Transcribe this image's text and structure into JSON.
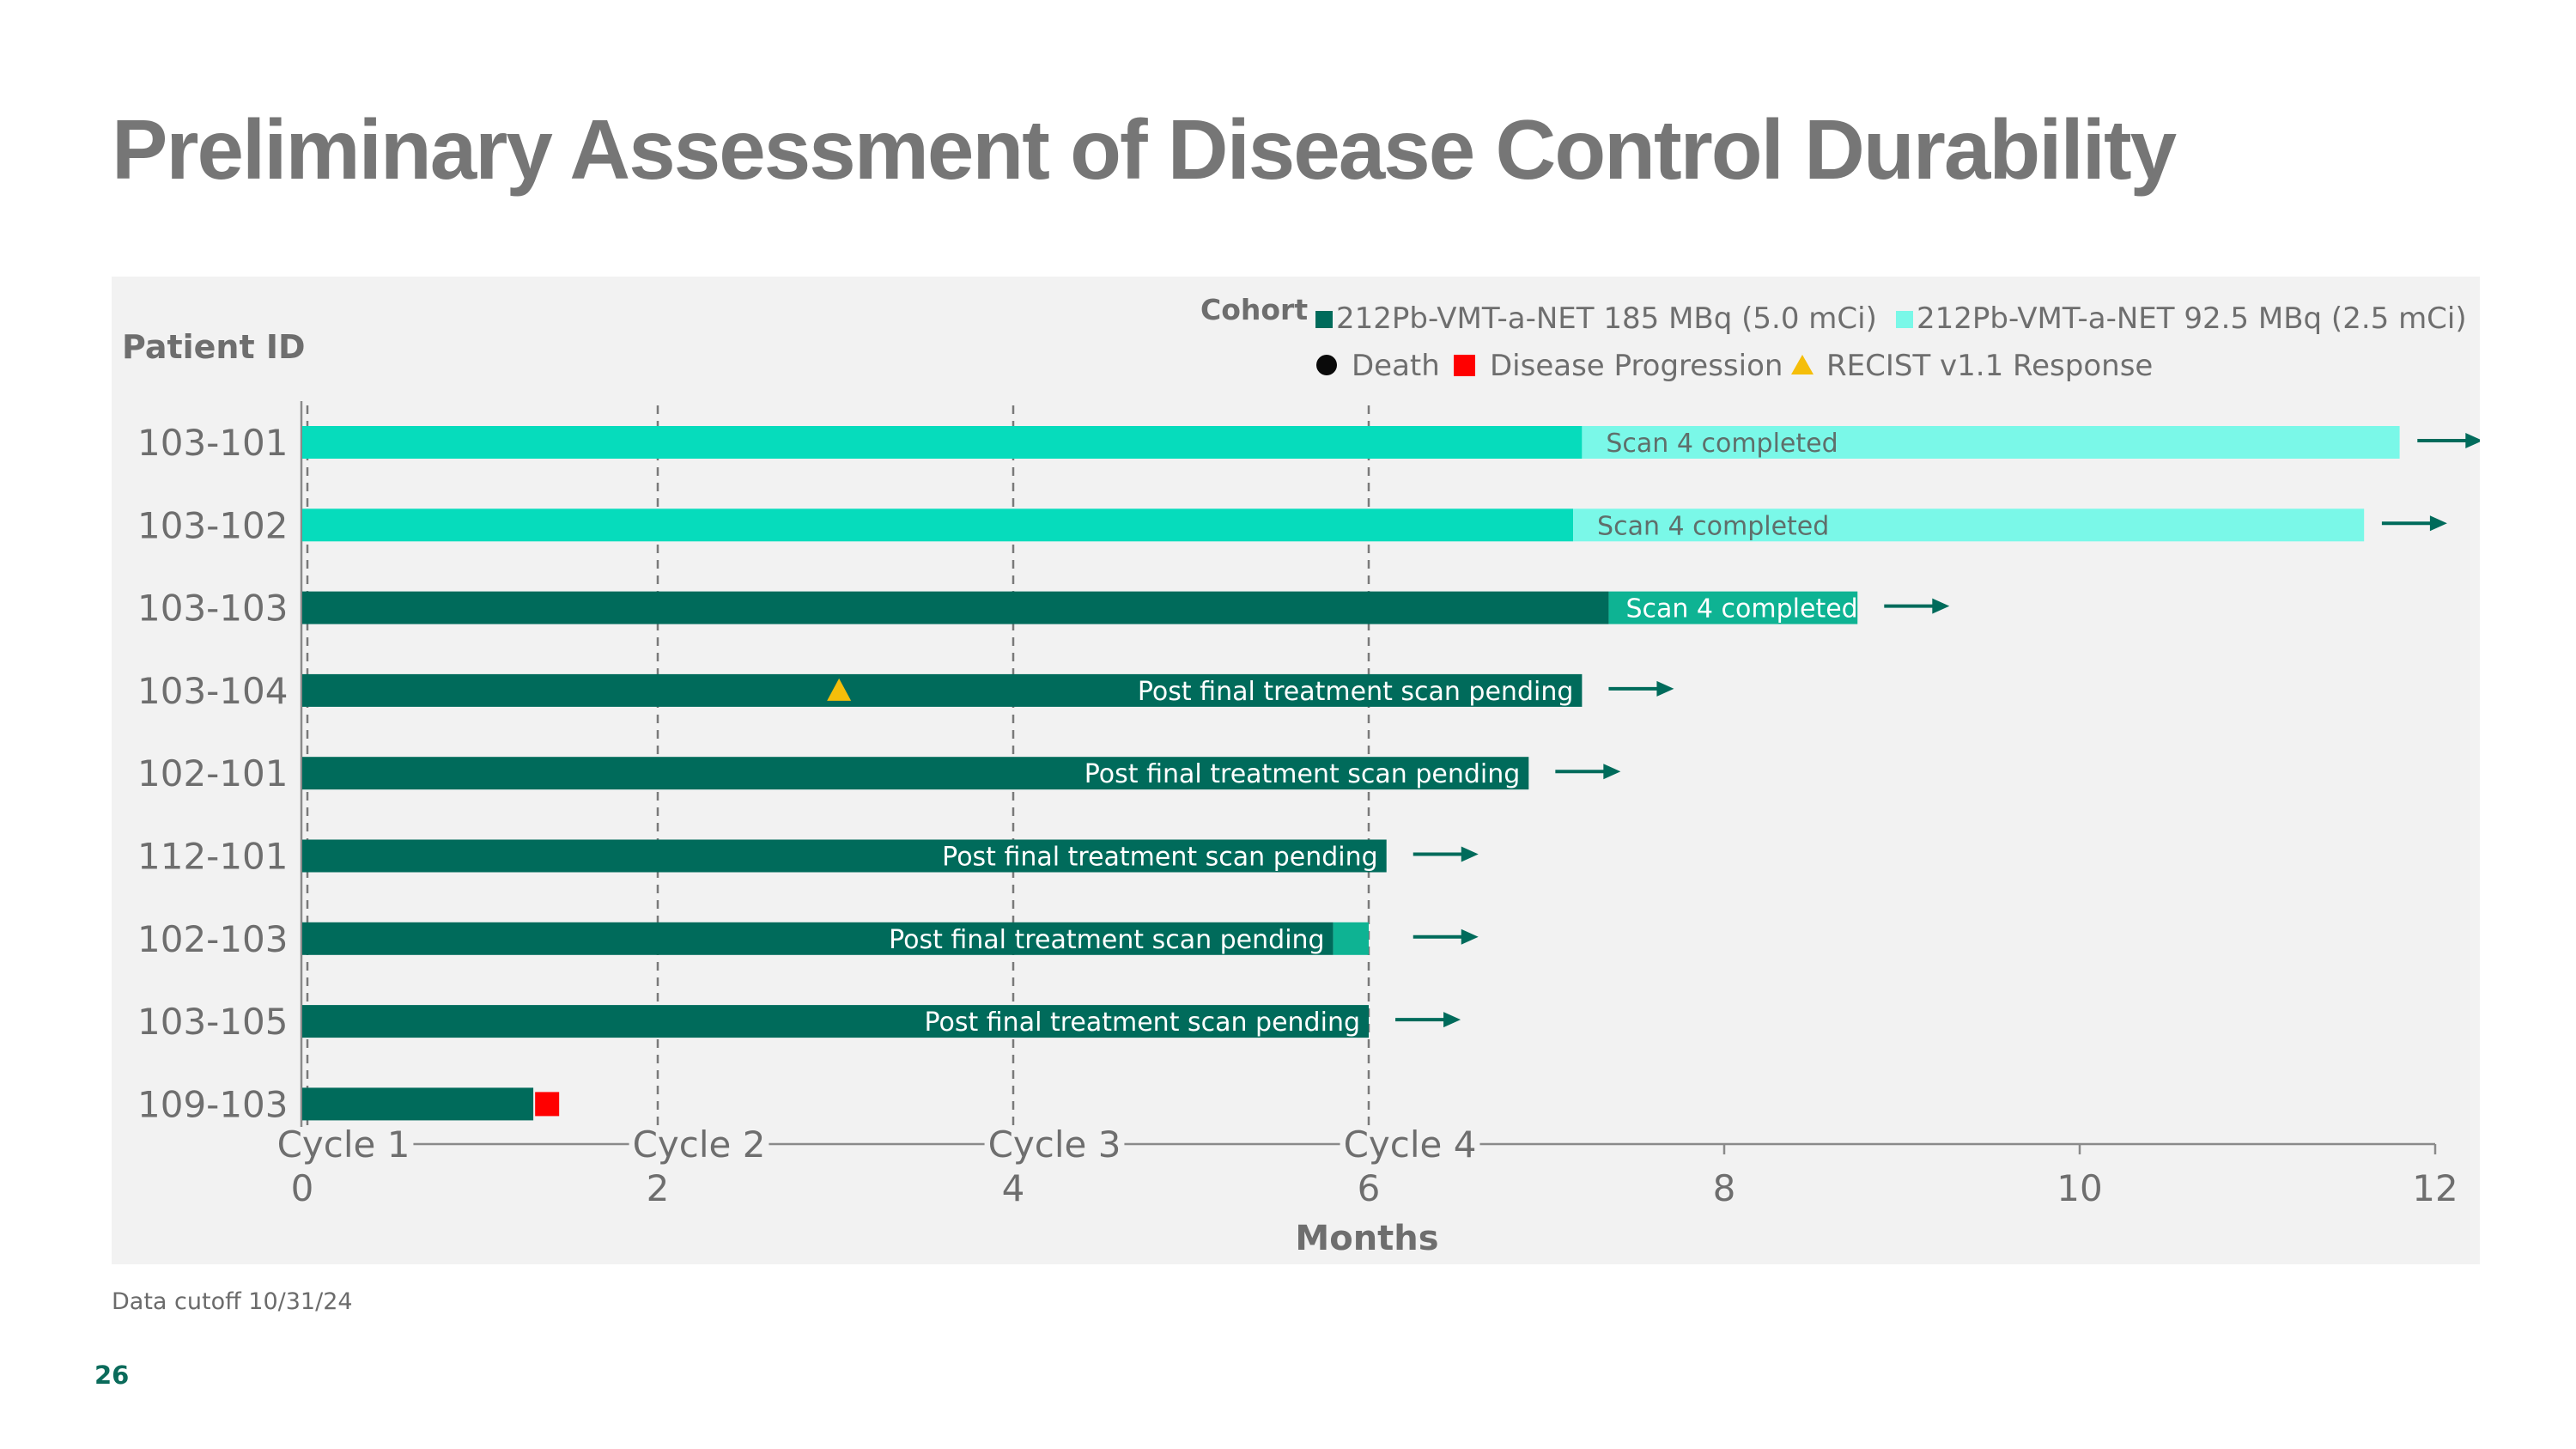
{
  "slide": {
    "title": "Preliminary Assessment of Disease Control Durability",
    "footnote": "Data cutoff 10/31/24",
    "page_number": "26"
  },
  "colors": {
    "dark_teal": "#006b5b",
    "bright_teal": "#06dcbc",
    "light_aqua": "#7af8e8",
    "mid_teal": "#0eb393",
    "progression_red": "#ff0000",
    "response_yellow": "#f5be0a",
    "death_black": "#0a0a0a",
    "label_gray": "#6e6e6e"
  },
  "chart_data": {
    "type": "swimmer",
    "ylabel": "Patient ID",
    "xlabel": "Months",
    "xlim": [
      0,
      12
    ],
    "x_ticks": [
      0,
      2,
      4,
      6,
      8,
      10,
      12
    ],
    "cycles": [
      {
        "label": "Cycle 1",
        "x": 0
      },
      {
        "label": "Cycle 2",
        "x": 2
      },
      {
        "label": "Cycle 3",
        "x": 4
      },
      {
        "label": "Cycle 4",
        "x": 6
      }
    ],
    "legend": {
      "cohort_title": "Cohort",
      "cohorts": [
        {
          "label": "212Pb-VMT-a-NET 185 MBq (5.0 mCi)",
          "color_key": "dark_teal"
        },
        {
          "label": "212Pb-VMT-a-NET 92.5 MBq (2.5 mCi)",
          "color_key": "light_aqua"
        }
      ],
      "markers": [
        {
          "label": "Death",
          "shape": "circle",
          "color_key": "death_black"
        },
        {
          "label": "Disease Progression",
          "shape": "square",
          "color_key": "progression_red"
        },
        {
          "label": "RECIST v1.1 Response",
          "shape": "triangle",
          "color_key": "response_yellow"
        }
      ]
    },
    "patients": [
      {
        "id": "103-101",
        "cohort": "92.5 MBq",
        "segments": [
          {
            "start": 0,
            "end": 7.2,
            "color_key": "bright_teal"
          },
          {
            "start": 7.2,
            "end": 11.8,
            "color_key": "light_aqua"
          }
        ],
        "annotation": "Scan 4 completed",
        "annotation_style": "gray-on-light",
        "ongoing": true,
        "arrow_x": 11.9,
        "markers": []
      },
      {
        "id": "103-102",
        "cohort": "92.5 MBq",
        "segments": [
          {
            "start": 0,
            "end": 7.15,
            "color_key": "bright_teal"
          },
          {
            "start": 7.15,
            "end": 11.6,
            "color_key": "light_aqua"
          }
        ],
        "annotation": "Scan 4 completed",
        "annotation_style": "gray-on-light",
        "ongoing": true,
        "arrow_x": 11.7,
        "markers": []
      },
      {
        "id": "103-103",
        "cohort": "185 MBq",
        "segments": [
          {
            "start": 0,
            "end": 7.35,
            "color_key": "dark_teal"
          },
          {
            "start": 7.35,
            "end": 8.75,
            "color_key": "mid_teal"
          }
        ],
        "annotation": "Scan 4 completed",
        "annotation_style": "white-on-segment",
        "ongoing": true,
        "arrow_x": 8.9,
        "markers": []
      },
      {
        "id": "103-104",
        "cohort": "185 MBq",
        "segments": [
          {
            "start": 0,
            "end": 7.2,
            "color_key": "dark_teal"
          }
        ],
        "annotation": "Post final treatment scan pending",
        "annotation_style": "white-inside",
        "ongoing": true,
        "arrow_x": 7.35,
        "markers": [
          {
            "type": "response",
            "x": 3.02
          }
        ]
      },
      {
        "id": "102-101",
        "cohort": "185 MBq",
        "segments": [
          {
            "start": 0,
            "end": 6.9,
            "color_key": "dark_teal"
          }
        ],
        "annotation": "Post final treatment scan pending",
        "annotation_style": "white-inside",
        "ongoing": true,
        "arrow_x": 7.05,
        "markers": []
      },
      {
        "id": "112-101",
        "cohort": "185 MBq",
        "segments": [
          {
            "start": 0,
            "end": 6.1,
            "color_key": "dark_teal"
          }
        ],
        "annotation": "Post final treatment scan pending",
        "annotation_style": "white-inside",
        "ongoing": true,
        "arrow_x": 6.25,
        "markers": []
      },
      {
        "id": "102-103",
        "cohort": "185 MBq",
        "segments": [
          {
            "start": 0,
            "end": 5.8,
            "color_key": "dark_teal"
          },
          {
            "start": 5.8,
            "end": 6.0,
            "color_key": "mid_teal"
          }
        ],
        "annotation": "Post final treatment scan pending",
        "annotation_style": "white-inside-first",
        "ongoing": true,
        "arrow_x": 6.25,
        "markers": []
      },
      {
        "id": "103-105",
        "cohort": "185 MBq",
        "segments": [
          {
            "start": 0,
            "end": 6.0,
            "color_key": "dark_teal"
          }
        ],
        "annotation": "Post final treatment scan pending",
        "annotation_style": "white-inside",
        "ongoing": true,
        "arrow_x": 6.15,
        "markers": []
      },
      {
        "id": "109-103",
        "cohort": "185 MBq",
        "segments": [
          {
            "start": 0,
            "end": 1.3,
            "color_key": "dark_teal"
          }
        ],
        "annotation": "",
        "annotation_style": "none",
        "ongoing": false,
        "markers": [
          {
            "type": "progression",
            "x": 1.31
          }
        ]
      }
    ]
  }
}
